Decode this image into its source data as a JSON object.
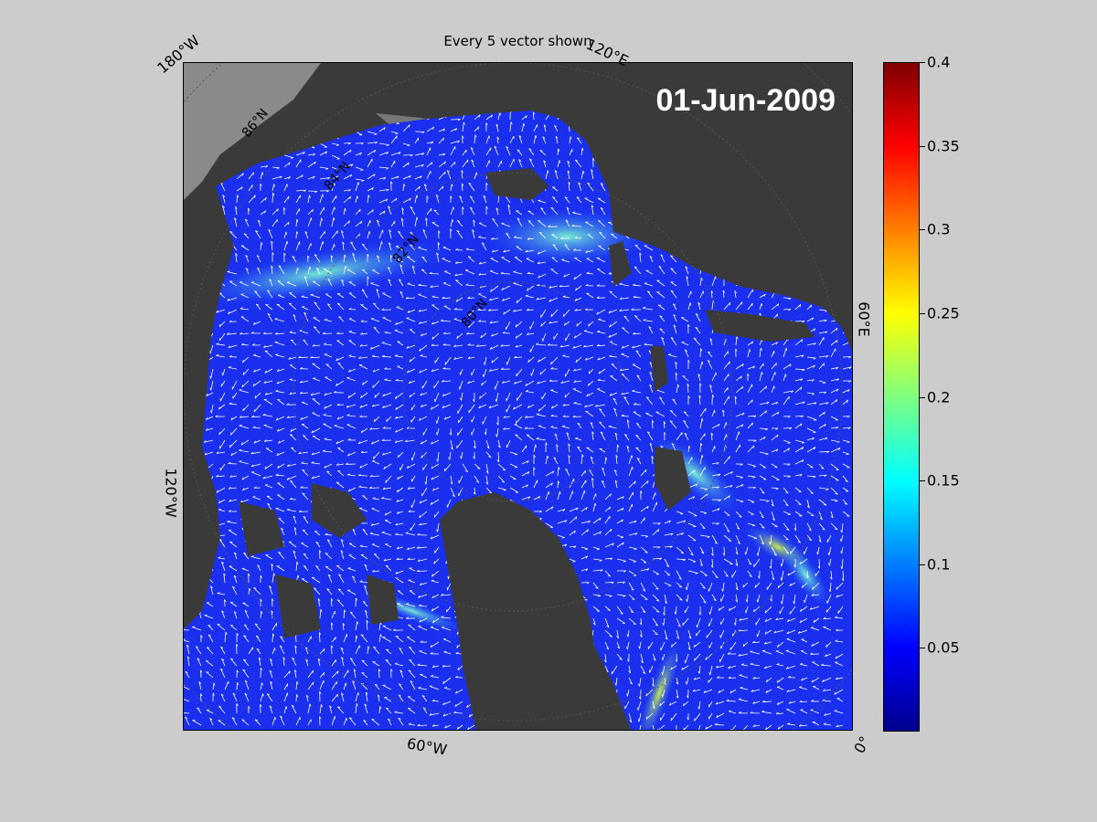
{
  "title": "Every 5 vector shown",
  "date": "01-Jun-2009",
  "coord_labels": {
    "lon_180w": "180°W",
    "lon_120e": "120°E",
    "lon_60e": "60°E",
    "lon_120w": "120°W",
    "lon_60w": "60°W",
    "lon_0": "0°",
    "lat_86n": "86°N",
    "lat_84n": "84°N",
    "lat_82n": "82°N",
    "lat_80n": "80°N"
  },
  "colorbar": {
    "min": 0,
    "max": 0.4,
    "ticks": [
      "0.4",
      "0.35",
      "0.3",
      "0.25",
      "0.2",
      "0.15",
      "0.1",
      "0.05"
    ],
    "tick_values": [
      0.4,
      0.35,
      0.3,
      0.25,
      0.2,
      0.15,
      0.1,
      0.05
    ],
    "colormap": "jet"
  },
  "colors": {
    "background": "#cccccc",
    "land": "#3a3a3a",
    "shelf": "#8a8a8a",
    "ice": "#1c3cf0",
    "vector": "#ffffff"
  }
}
